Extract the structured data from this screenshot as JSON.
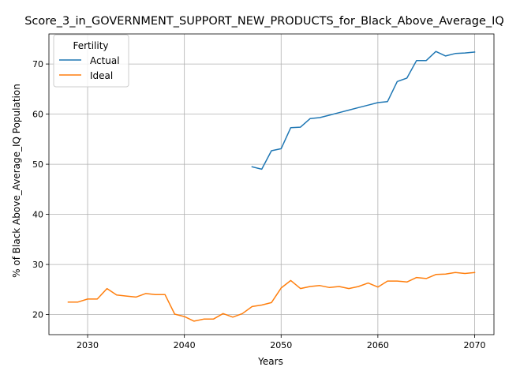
{
  "chart_data": {
    "type": "line",
    "title": "Score_3_in_GOVERNMENT_SUPPORT_NEW_PRODUCTS_for_Black_Above_Average_IQ",
    "xlabel": "Years",
    "ylabel": "% of Black Above_Average_IQ Population",
    "xlim": [
      2026,
      2072
    ],
    "ylim": [
      16,
      76
    ],
    "xticks": [
      2030,
      2040,
      2050,
      2060,
      2070
    ],
    "yticks": [
      20,
      30,
      40,
      50,
      60,
      70
    ],
    "grid": true,
    "legend": {
      "title": "Fertility",
      "placement": "upper left"
    },
    "series": [
      {
        "name": "Actual",
        "color": "#1f77b4",
        "x": [
          2047,
          2048,
          2049,
          2050,
          2051,
          2052,
          2053,
          2054,
          2055,
          2056,
          2057,
          2058,
          2059,
          2060,
          2061,
          2062,
          2063,
          2064,
          2065,
          2066,
          2067,
          2068,
          2069,
          2070
        ],
        "y": [
          49.5,
          49.0,
          52.7,
          53.1,
          57.3,
          57.4,
          59.1,
          59.3,
          59.8,
          60.3,
          60.8,
          61.3,
          61.8,
          62.3,
          62.5,
          66.5,
          67.2,
          70.7,
          70.7,
          72.5,
          71.6,
          72.1,
          72.2,
          72.4
        ]
      },
      {
        "name": "Ideal",
        "color": "#ff7f0e",
        "x": [
          2028,
          2029,
          2030,
          2031,
          2032,
          2033,
          2034,
          2035,
          2036,
          2037,
          2038,
          2039,
          2040,
          2041,
          2042,
          2043,
          2044,
          2045,
          2046,
          2047,
          2048,
          2049,
          2050,
          2051,
          2052,
          2053,
          2054,
          2055,
          2056,
          2057,
          2058,
          2059,
          2060,
          2061,
          2062,
          2063,
          2064,
          2065,
          2066,
          2067,
          2068,
          2069,
          2070
        ],
        "y": [
          22.5,
          22.5,
          23.1,
          23.1,
          25.2,
          23.9,
          23.7,
          23.5,
          24.2,
          24.0,
          24.0,
          20.1,
          19.6,
          18.7,
          19.1,
          19.1,
          20.2,
          19.5,
          20.2,
          21.6,
          21.9,
          22.4,
          25.3,
          26.8,
          25.2,
          25.6,
          25.8,
          25.4,
          25.6,
          25.2,
          25.6,
          26.3,
          25.5,
          26.7,
          26.7,
          26.5,
          27.4,
          27.2,
          28.0,
          28.1,
          28.4,
          28.2,
          28.4
        ]
      }
    ]
  }
}
